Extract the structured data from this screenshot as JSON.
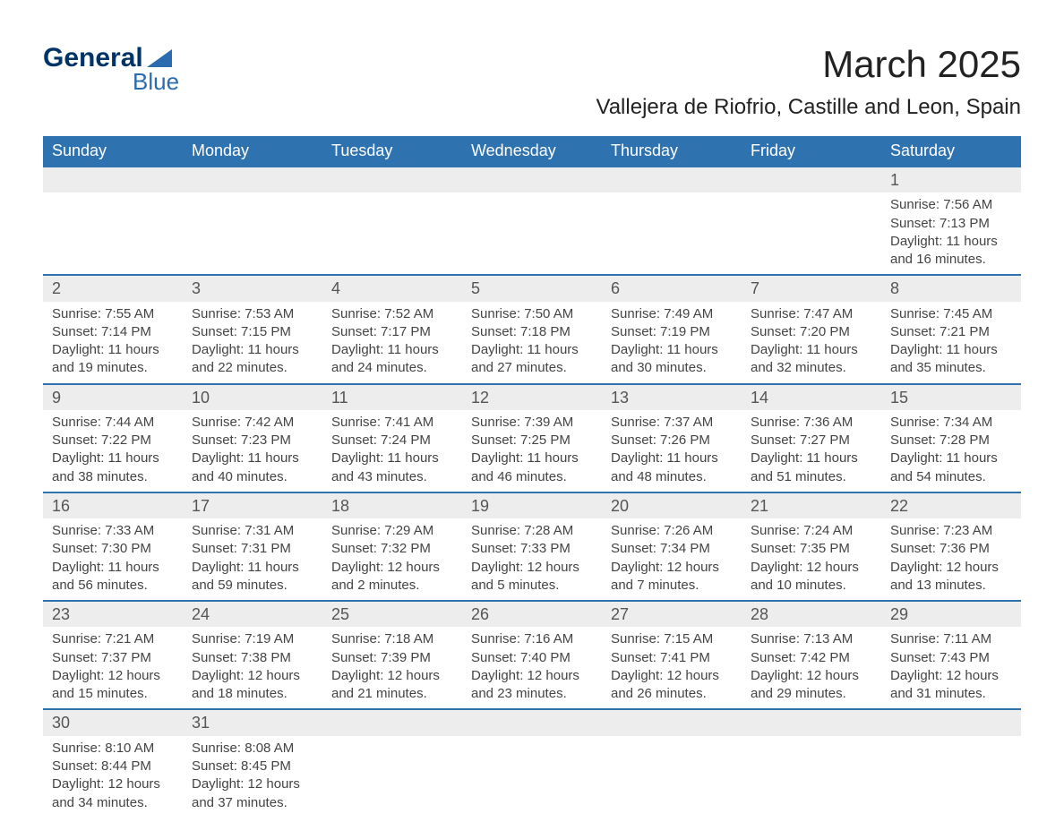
{
  "logo": {
    "word1": "General",
    "word2": "Blue"
  },
  "title": {
    "month": "March 2025",
    "location": "Vallejera de Riofrio, Castille and Leon, Spain"
  },
  "colors": {
    "header_bg": "#2f72b0",
    "header_text": "#ffffff",
    "daynum_strip_bg": "#ededed",
    "row_divider": "#2f72b0",
    "body_text": "#444444",
    "title_text": "#222222",
    "logo_dark": "#003366",
    "logo_light": "#2b6cb0",
    "page_bg": "#ffffff"
  },
  "typography": {
    "font_family": "Arial",
    "month_title_size_pt": 32,
    "location_size_pt": 18,
    "header_size_pt": 14,
    "daynum_size_pt": 14,
    "body_size_pt": 11
  },
  "weekday_headers": [
    "Sunday",
    "Monday",
    "Tuesday",
    "Wednesday",
    "Thursday",
    "Friday",
    "Saturday"
  ],
  "weeks": [
    [
      null,
      null,
      null,
      null,
      null,
      null,
      {
        "d": "1",
        "sunrise": "7:56 AM",
        "sunset": "7:13 PM",
        "daylight": "11 hours and 16 minutes."
      }
    ],
    [
      {
        "d": "2",
        "sunrise": "7:55 AM",
        "sunset": "7:14 PM",
        "daylight": "11 hours and 19 minutes."
      },
      {
        "d": "3",
        "sunrise": "7:53 AM",
        "sunset": "7:15 PM",
        "daylight": "11 hours and 22 minutes."
      },
      {
        "d": "4",
        "sunrise": "7:52 AM",
        "sunset": "7:17 PM",
        "daylight": "11 hours and 24 minutes."
      },
      {
        "d": "5",
        "sunrise": "7:50 AM",
        "sunset": "7:18 PM",
        "daylight": "11 hours and 27 minutes."
      },
      {
        "d": "6",
        "sunrise": "7:49 AM",
        "sunset": "7:19 PM",
        "daylight": "11 hours and 30 minutes."
      },
      {
        "d": "7",
        "sunrise": "7:47 AM",
        "sunset": "7:20 PM",
        "daylight": "11 hours and 32 minutes."
      },
      {
        "d": "8",
        "sunrise": "7:45 AM",
        "sunset": "7:21 PM",
        "daylight": "11 hours and 35 minutes."
      }
    ],
    [
      {
        "d": "9",
        "sunrise": "7:44 AM",
        "sunset": "7:22 PM",
        "daylight": "11 hours and 38 minutes."
      },
      {
        "d": "10",
        "sunrise": "7:42 AM",
        "sunset": "7:23 PM",
        "daylight": "11 hours and 40 minutes."
      },
      {
        "d": "11",
        "sunrise": "7:41 AM",
        "sunset": "7:24 PM",
        "daylight": "11 hours and 43 minutes."
      },
      {
        "d": "12",
        "sunrise": "7:39 AM",
        "sunset": "7:25 PM",
        "daylight": "11 hours and 46 minutes."
      },
      {
        "d": "13",
        "sunrise": "7:37 AM",
        "sunset": "7:26 PM",
        "daylight": "11 hours and 48 minutes."
      },
      {
        "d": "14",
        "sunrise": "7:36 AM",
        "sunset": "7:27 PM",
        "daylight": "11 hours and 51 minutes."
      },
      {
        "d": "15",
        "sunrise": "7:34 AM",
        "sunset": "7:28 PM",
        "daylight": "11 hours and 54 minutes."
      }
    ],
    [
      {
        "d": "16",
        "sunrise": "7:33 AM",
        "sunset": "7:30 PM",
        "daylight": "11 hours and 56 minutes."
      },
      {
        "d": "17",
        "sunrise": "7:31 AM",
        "sunset": "7:31 PM",
        "daylight": "11 hours and 59 minutes."
      },
      {
        "d": "18",
        "sunrise": "7:29 AM",
        "sunset": "7:32 PM",
        "daylight": "12 hours and 2 minutes."
      },
      {
        "d": "19",
        "sunrise": "7:28 AM",
        "sunset": "7:33 PM",
        "daylight": "12 hours and 5 minutes."
      },
      {
        "d": "20",
        "sunrise": "7:26 AM",
        "sunset": "7:34 PM",
        "daylight": "12 hours and 7 minutes."
      },
      {
        "d": "21",
        "sunrise": "7:24 AM",
        "sunset": "7:35 PM",
        "daylight": "12 hours and 10 minutes."
      },
      {
        "d": "22",
        "sunrise": "7:23 AM",
        "sunset": "7:36 PM",
        "daylight": "12 hours and 13 minutes."
      }
    ],
    [
      {
        "d": "23",
        "sunrise": "7:21 AM",
        "sunset": "7:37 PM",
        "daylight": "12 hours and 15 minutes."
      },
      {
        "d": "24",
        "sunrise": "7:19 AM",
        "sunset": "7:38 PM",
        "daylight": "12 hours and 18 minutes."
      },
      {
        "d": "25",
        "sunrise": "7:18 AM",
        "sunset": "7:39 PM",
        "daylight": "12 hours and 21 minutes."
      },
      {
        "d": "26",
        "sunrise": "7:16 AM",
        "sunset": "7:40 PM",
        "daylight": "12 hours and 23 minutes."
      },
      {
        "d": "27",
        "sunrise": "7:15 AM",
        "sunset": "7:41 PM",
        "daylight": "12 hours and 26 minutes."
      },
      {
        "d": "28",
        "sunrise": "7:13 AM",
        "sunset": "7:42 PM",
        "daylight": "12 hours and 29 minutes."
      },
      {
        "d": "29",
        "sunrise": "7:11 AM",
        "sunset": "7:43 PM",
        "daylight": "12 hours and 31 minutes."
      }
    ],
    [
      {
        "d": "30",
        "sunrise": "8:10 AM",
        "sunset": "8:44 PM",
        "daylight": "12 hours and 34 minutes."
      },
      {
        "d": "31",
        "sunrise": "8:08 AM",
        "sunset": "8:45 PM",
        "daylight": "12 hours and 37 minutes."
      },
      null,
      null,
      null,
      null,
      null
    ]
  ],
  "labels": {
    "sunrise": "Sunrise: ",
    "sunset": "Sunset: ",
    "daylight": "Daylight: "
  }
}
